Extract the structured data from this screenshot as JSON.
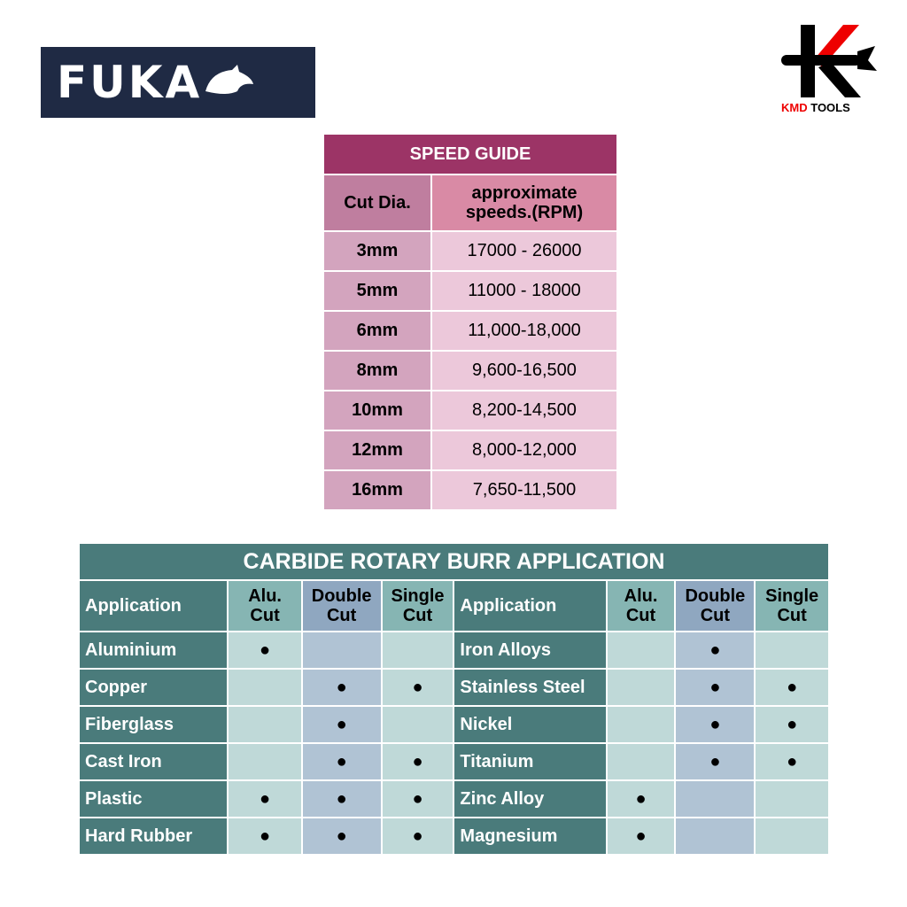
{
  "logos": {
    "left": "FUKA",
    "right": "KMD TOOLS",
    "right_k": "K"
  },
  "speed_guide": {
    "title": "SPEED GUIDE",
    "col1": "Cut Dia.",
    "col2_line1": "approximate",
    "col2_line2": "speeds.(RPM)",
    "rows": [
      [
        "3mm",
        "17000 - 26000"
      ],
      [
        "5mm",
        "11000 - 18000"
      ],
      [
        "6mm",
        "11,000-18,000"
      ],
      [
        "8mm",
        "9,600-16,500"
      ],
      [
        "10mm",
        "8,200-14,500"
      ],
      [
        "12mm",
        "8,000-12,000"
      ],
      [
        "16mm",
        "7,650-11,500"
      ]
    ]
  },
  "burr": {
    "title": "CARBIDE ROTARY BURR APPLICATION",
    "headers": [
      "Application",
      "Alu. Cut",
      "Double Cut",
      "Single Cut"
    ],
    "mark": "●",
    "left": [
      {
        "name": "Aluminium",
        "marks": [
          true,
          false,
          false
        ]
      },
      {
        "name": "Copper",
        "marks": [
          false,
          true,
          true
        ]
      },
      {
        "name": "Fiberglass",
        "marks": [
          false,
          true,
          false
        ]
      },
      {
        "name": "Cast Iron",
        "marks": [
          false,
          true,
          true
        ]
      },
      {
        "name": "Plastic",
        "marks": [
          true,
          true,
          true
        ]
      },
      {
        "name": "Hard Rubber",
        "marks": [
          true,
          true,
          true
        ]
      }
    ],
    "right": [
      {
        "name": "Iron Alloys",
        "marks": [
          false,
          true,
          false
        ]
      },
      {
        "name": "Stainless Steel",
        "marks": [
          false,
          true,
          true
        ]
      },
      {
        "name": "Nickel",
        "marks": [
          false,
          true,
          true
        ]
      },
      {
        "name": "Titanium",
        "marks": [
          false,
          true,
          true
        ]
      },
      {
        "name": "Zinc Alloy",
        "marks": [
          true,
          false,
          false
        ]
      },
      {
        "name": "Magnesium",
        "marks": [
          true,
          false,
          false
        ]
      }
    ]
  }
}
